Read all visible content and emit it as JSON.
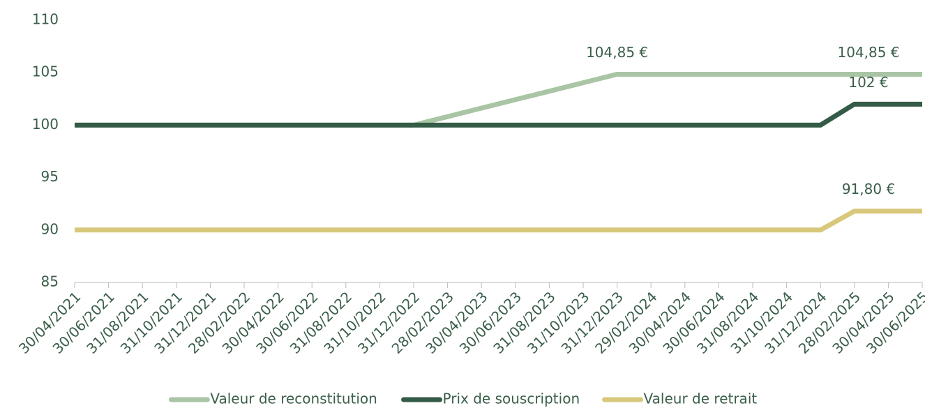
{
  "chart_data": {
    "type": "line",
    "categories": [
      "30/04/2021",
      "30/06/2021",
      "31/08/2021",
      "31/10/2021",
      "31/12/2021",
      "28/02/2022",
      "30/04/2022",
      "30/06/2022",
      "31/08/2022",
      "31/10/2022",
      "31/12/2022",
      "28/02/2023",
      "30/04/2023",
      "30/06/2023",
      "31/08/2023",
      "31/10/2023",
      "31/12/2023",
      "29/02/2024",
      "30/04/2024",
      "30/06/2024",
      "31/08/2024",
      "31/10/2024",
      "31/12/2024",
      "28/02/2025",
      "30/04/2025",
      "30/06/2025"
    ],
    "series": [
      {
        "name": "Valeur de reconstitution",
        "color": "#aac5a5",
        "values": [
          100,
          100,
          100,
          100,
          100,
          100,
          100,
          100,
          100,
          100,
          100,
          100.81,
          101.62,
          102.43,
          103.23,
          104.04,
          104.85,
          104.85,
          104.85,
          104.85,
          104.85,
          104.85,
          104.85,
          104.85,
          104.85,
          104.85
        ],
        "value_labels": [
          null,
          null,
          null,
          null,
          null,
          null,
          null,
          null,
          null,
          null,
          null,
          null,
          null,
          null,
          null,
          null,
          "104,85 €",
          null,
          null,
          null,
          null,
          null,
          null,
          null,
          null,
          "104,85 €"
        ]
      },
      {
        "name": "Prix de souscription",
        "color": "#345b47",
        "values": [
          100,
          100,
          100,
          100,
          100,
          100,
          100,
          100,
          100,
          100,
          100,
          100,
          100,
          100,
          100,
          100,
          100,
          100,
          100,
          100,
          100,
          100,
          100,
          102,
          102,
          102
        ],
        "value_labels": [
          null,
          null,
          null,
          null,
          null,
          null,
          null,
          null,
          null,
          null,
          null,
          null,
          null,
          null,
          null,
          null,
          null,
          null,
          null,
          null,
          null,
          null,
          null,
          null,
          null,
          "102 €"
        ]
      },
      {
        "name": "Valeur de retrait",
        "color": "#d8c87c",
        "values": [
          90,
          90,
          90,
          90,
          90,
          90,
          90,
          90,
          90,
          90,
          90,
          90,
          90,
          90,
          90,
          90,
          90,
          90,
          90,
          90,
          90,
          90,
          90,
          91.8,
          91.8,
          91.8
        ],
        "value_labels": [
          null,
          null,
          null,
          null,
          null,
          null,
          null,
          null,
          null,
          null,
          null,
          null,
          null,
          null,
          null,
          null,
          null,
          null,
          null,
          null,
          null,
          null,
          null,
          null,
          null,
          "91,80 €"
        ]
      }
    ],
    "ylim": [
      85,
      110
    ],
    "yticks": [
      85,
      90,
      95,
      100,
      105,
      110
    ],
    "grid": false,
    "legend": "bottom"
  }
}
